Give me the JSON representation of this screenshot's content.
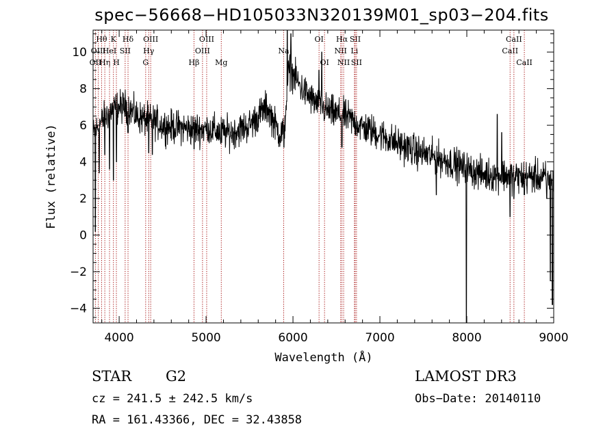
{
  "chart_data": {
    "type": "line",
    "title": "spec−56668−HD105033N320139M01_sp03−204.fits",
    "xlabel": "Wavelength (Å)",
    "ylabel": "Flux (relative)",
    "xlim": [
      3700,
      9000
    ],
    "ylim": [
      -4.8,
      11.2
    ],
    "xticks": [
      4000,
      5000,
      6000,
      7000,
      8000,
      9000
    ],
    "yticks": [
      -4,
      -2,
      0,
      2,
      4,
      6,
      8,
      10
    ],
    "continuum": [
      [
        3700,
        5.5
      ],
      [
        3800,
        6.2
      ],
      [
        3900,
        6.8
      ],
      [
        4000,
        7.0
      ],
      [
        4100,
        7.0
      ],
      [
        4200,
        6.5
      ],
      [
        4300,
        6.3
      ],
      [
        4400,
        6.2
      ],
      [
        4500,
        6.0
      ],
      [
        4600,
        5.9
      ],
      [
        4700,
        5.9
      ],
      [
        4800,
        5.8
      ],
      [
        4900,
        5.8
      ],
      [
        5000,
        5.8
      ],
      [
        5100,
        5.7
      ],
      [
        5200,
        5.6
      ],
      [
        5300,
        5.6
      ],
      [
        5400,
        5.8
      ],
      [
        5500,
        6.0
      ],
      [
        5600,
        6.5
      ],
      [
        5700,
        7.0
      ],
      [
        5800,
        6.0
      ],
      [
        5850,
        5.5
      ],
      [
        5900,
        5.8
      ],
      [
        5950,
        9.0
      ],
      [
        6000,
        8.8
      ],
      [
        6100,
        8.0
      ],
      [
        6200,
        7.5
      ],
      [
        6300,
        7.0
      ],
      [
        6400,
        6.8
      ],
      [
        6500,
        6.6
      ],
      [
        6600,
        6.5
      ],
      [
        6700,
        6.2
      ],
      [
        6800,
        5.9
      ],
      [
        7000,
        5.5
      ],
      [
        7200,
        5.0
      ],
      [
        7400,
        4.6
      ],
      [
        7600,
        4.3
      ],
      [
        7800,
        4.0
      ],
      [
        8000,
        3.6
      ],
      [
        8200,
        3.3
      ],
      [
        8400,
        3.3
      ],
      [
        8600,
        3.2
      ],
      [
        8800,
        3.2
      ],
      [
        9000,
        3.0
      ]
    ],
    "features": [
      {
        "x": 3725,
        "y": 0.2
      },
      {
        "x": 3770,
        "y": 3.4
      },
      {
        "x": 3835,
        "y": 4.4
      },
      {
        "x": 3889,
        "y": 3.6
      },
      {
        "x": 3933,
        "y": 3.0
      },
      {
        "x": 3968,
        "y": 4.0
      },
      {
        "x": 4102,
        "y": 5.6
      },
      {
        "x": 4340,
        "y": 4.5
      },
      {
        "x": 4383,
        "y": 4.4
      },
      {
        "x": 4861,
        "y": 4.7
      },
      {
        "x": 5020,
        "y": 5.2
      },
      {
        "x": 5170,
        "y": 5.0
      },
      {
        "x": 5895,
        "y": 4.8
      },
      {
        "x": 5935,
        "y": 11.2
      },
      {
        "x": 5975,
        "y": 11.0
      },
      {
        "x": 6300,
        "y": 9.0
      },
      {
        "x": 6330,
        "y": 10.0
      },
      {
        "x": 6563,
        "y": 4.8
      },
      {
        "x": 7650,
        "y": 2.2
      },
      {
        "x": 7995,
        "y": -4.8
      },
      {
        "x": 8350,
        "y": 6.6
      },
      {
        "x": 8400,
        "y": 5.6
      },
      {
        "x": 8498,
        "y": 1.0
      },
      {
        "x": 8542,
        "y": 2.0
      },
      {
        "x": 8662,
        "y": 2.2
      },
      {
        "x": 8840,
        "y": 2.6
      },
      {
        "x": 8920,
        "y": 2.0
      },
      {
        "x": 8960,
        "y": -2.5
      },
      {
        "x": 8985,
        "y": -3.8
      }
    ],
    "noise_amplitude": 0.45,
    "lines": [
      {
        "name": "OII",
        "x": 3727,
        "row": 2
      },
      {
        "name": "Hθ",
        "x": 3798,
        "row": 0
      },
      {
        "name": "OIII",
        "x": 3760,
        "row": 1
      },
      {
        "name": "Hη",
        "x": 3835,
        "row": 2
      },
      {
        "name": "HeI",
        "x": 3889,
        "row": 1
      },
      {
        "name": "K",
        "x": 3934,
        "row": 0
      },
      {
        "name": "H",
        "x": 3968,
        "row": 2
      },
      {
        "name": "SII",
        "x": 4069,
        "row": 1
      },
      {
        "name": "Hδ",
        "x": 4102,
        "row": 0
      },
      {
        "name": "G",
        "x": 4305,
        "row": 2
      },
      {
        "name": "Hγ",
        "x": 4340,
        "row": 1
      },
      {
        "name": "OIII",
        "x": 4363,
        "row": 0
      },
      {
        "name": "Hβ",
        "x": 4861,
        "row": 2
      },
      {
        "name": "OIII",
        "x": 4959,
        "row": 1
      },
      {
        "name": "OIII",
        "x": 5007,
        "row": 0
      },
      {
        "name": "Mg",
        "x": 5175,
        "row": 2
      },
      {
        "name": "Na",
        "x": 5893,
        "row": 1
      },
      {
        "name": "OI",
        "x": 6300,
        "row": 0
      },
      {
        "name": "OI",
        "x": 6363,
        "row": 2
      },
      {
        "name": "NII",
        "x": 6548,
        "row": 1
      },
      {
        "name": "Hα",
        "x": 6563,
        "row": 0
      },
      {
        "name": "NII",
        "x": 6583,
        "row": 2
      },
      {
        "name": "Li",
        "x": 6707,
        "row": 1
      },
      {
        "name": "SII",
        "x": 6716,
        "row": 0
      },
      {
        "name": "SII",
        "x": 6731,
        "row": 2
      },
      {
        "name": "CaII",
        "x": 8498,
        "row": 1
      },
      {
        "name": "CaII",
        "x": 8542,
        "row": 0
      },
      {
        "name": "CaII",
        "x": 8662,
        "row": 2
      }
    ]
  },
  "info": {
    "object_class": "STAR",
    "subclass": "G2",
    "survey": "LAMOST DR3",
    "cz": "cz = 241.5 ± 242.5 km/s",
    "obs_date": "Obs−Date: 20140110",
    "coords": "RA = 161.43366, DEC =  32.43858"
  }
}
